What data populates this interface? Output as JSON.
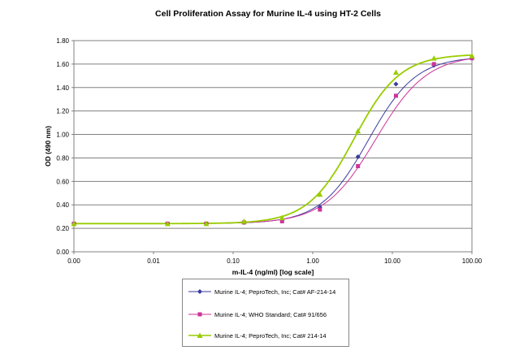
{
  "chart_data": {
    "type": "line",
    "title": "Cell Proliferation Assay  for Murine IL-4 using HT-2 Cells",
    "xlabel": "m-IL-4 (ng/ml) [log scale]",
    "ylabel": "OD (490 nm)",
    "x_scale": "log",
    "x_tick_values": [
      0.001,
      0.01,
      0.1,
      1,
      10,
      100
    ],
    "x_tick_labels": [
      "0.00",
      "0.01",
      "0.10",
      "1.00",
      "10.00",
      "100.00"
    ],
    "y_tick_values": [
      0,
      0.2,
      0.4,
      0.6,
      0.8,
      1.0,
      1.2,
      1.4,
      1.6,
      1.8
    ],
    "y_tick_labels": [
      "0.00",
      "0.20",
      "0.40",
      "0.60",
      "0.80",
      "1.00",
      "1.20",
      "1.40",
      "1.60",
      "1.80"
    ],
    "xlim": [
      0.001,
      100
    ],
    "ylim": [
      0,
      1.8
    ],
    "grid": "horizontal",
    "legend_position": "bottom",
    "series": [
      {
        "name": "Murine IL-4; PeproTech, Inc; Cat# AF-214-14",
        "color": "#3a3aa0",
        "marker": "diamond",
        "x": [
          0.001,
          0.015,
          0.046,
          0.137,
          0.412,
          1.23,
          3.7,
          11.1,
          33.3,
          100
        ],
        "y": [
          0.24,
          0.24,
          0.24,
          0.25,
          0.27,
          0.38,
          0.81,
          1.43,
          1.59,
          1.65
        ],
        "fit": {
          "bottom": 0.24,
          "top": 1.665,
          "ec50": 5.0,
          "hill": 1.45
        }
      },
      {
        "name": "Murine IL-4; WHO Standard; Cat# 91/656",
        "color": "#cc3399",
        "marker": "square",
        "x": [
          0.001,
          0.015,
          0.046,
          0.137,
          0.412,
          1.23,
          3.7,
          11.1,
          33.3,
          100
        ],
        "y": [
          0.24,
          0.24,
          0.24,
          0.25,
          0.26,
          0.36,
          0.73,
          1.33,
          1.6,
          1.65
        ],
        "fit": {
          "bottom": 0.24,
          "top": 1.68,
          "ec50": 6.2,
          "hill": 1.35
        }
      },
      {
        "name": "Murine IL-4; PeproTech, Inc; Cat# 214-14",
        "color": "#99cc00",
        "marker": "triangle",
        "x": [
          0.001,
          0.015,
          0.046,
          0.137,
          0.412,
          1.23,
          3.7,
          11.1,
          33.3,
          100
        ],
        "y": [
          0.24,
          0.24,
          0.24,
          0.26,
          0.29,
          0.49,
          1.03,
          1.53,
          1.65,
          1.67
        ],
        "fit": {
          "bottom": 0.24,
          "top": 1.685,
          "ec50": 3.3,
          "hill": 1.5
        }
      }
    ]
  }
}
